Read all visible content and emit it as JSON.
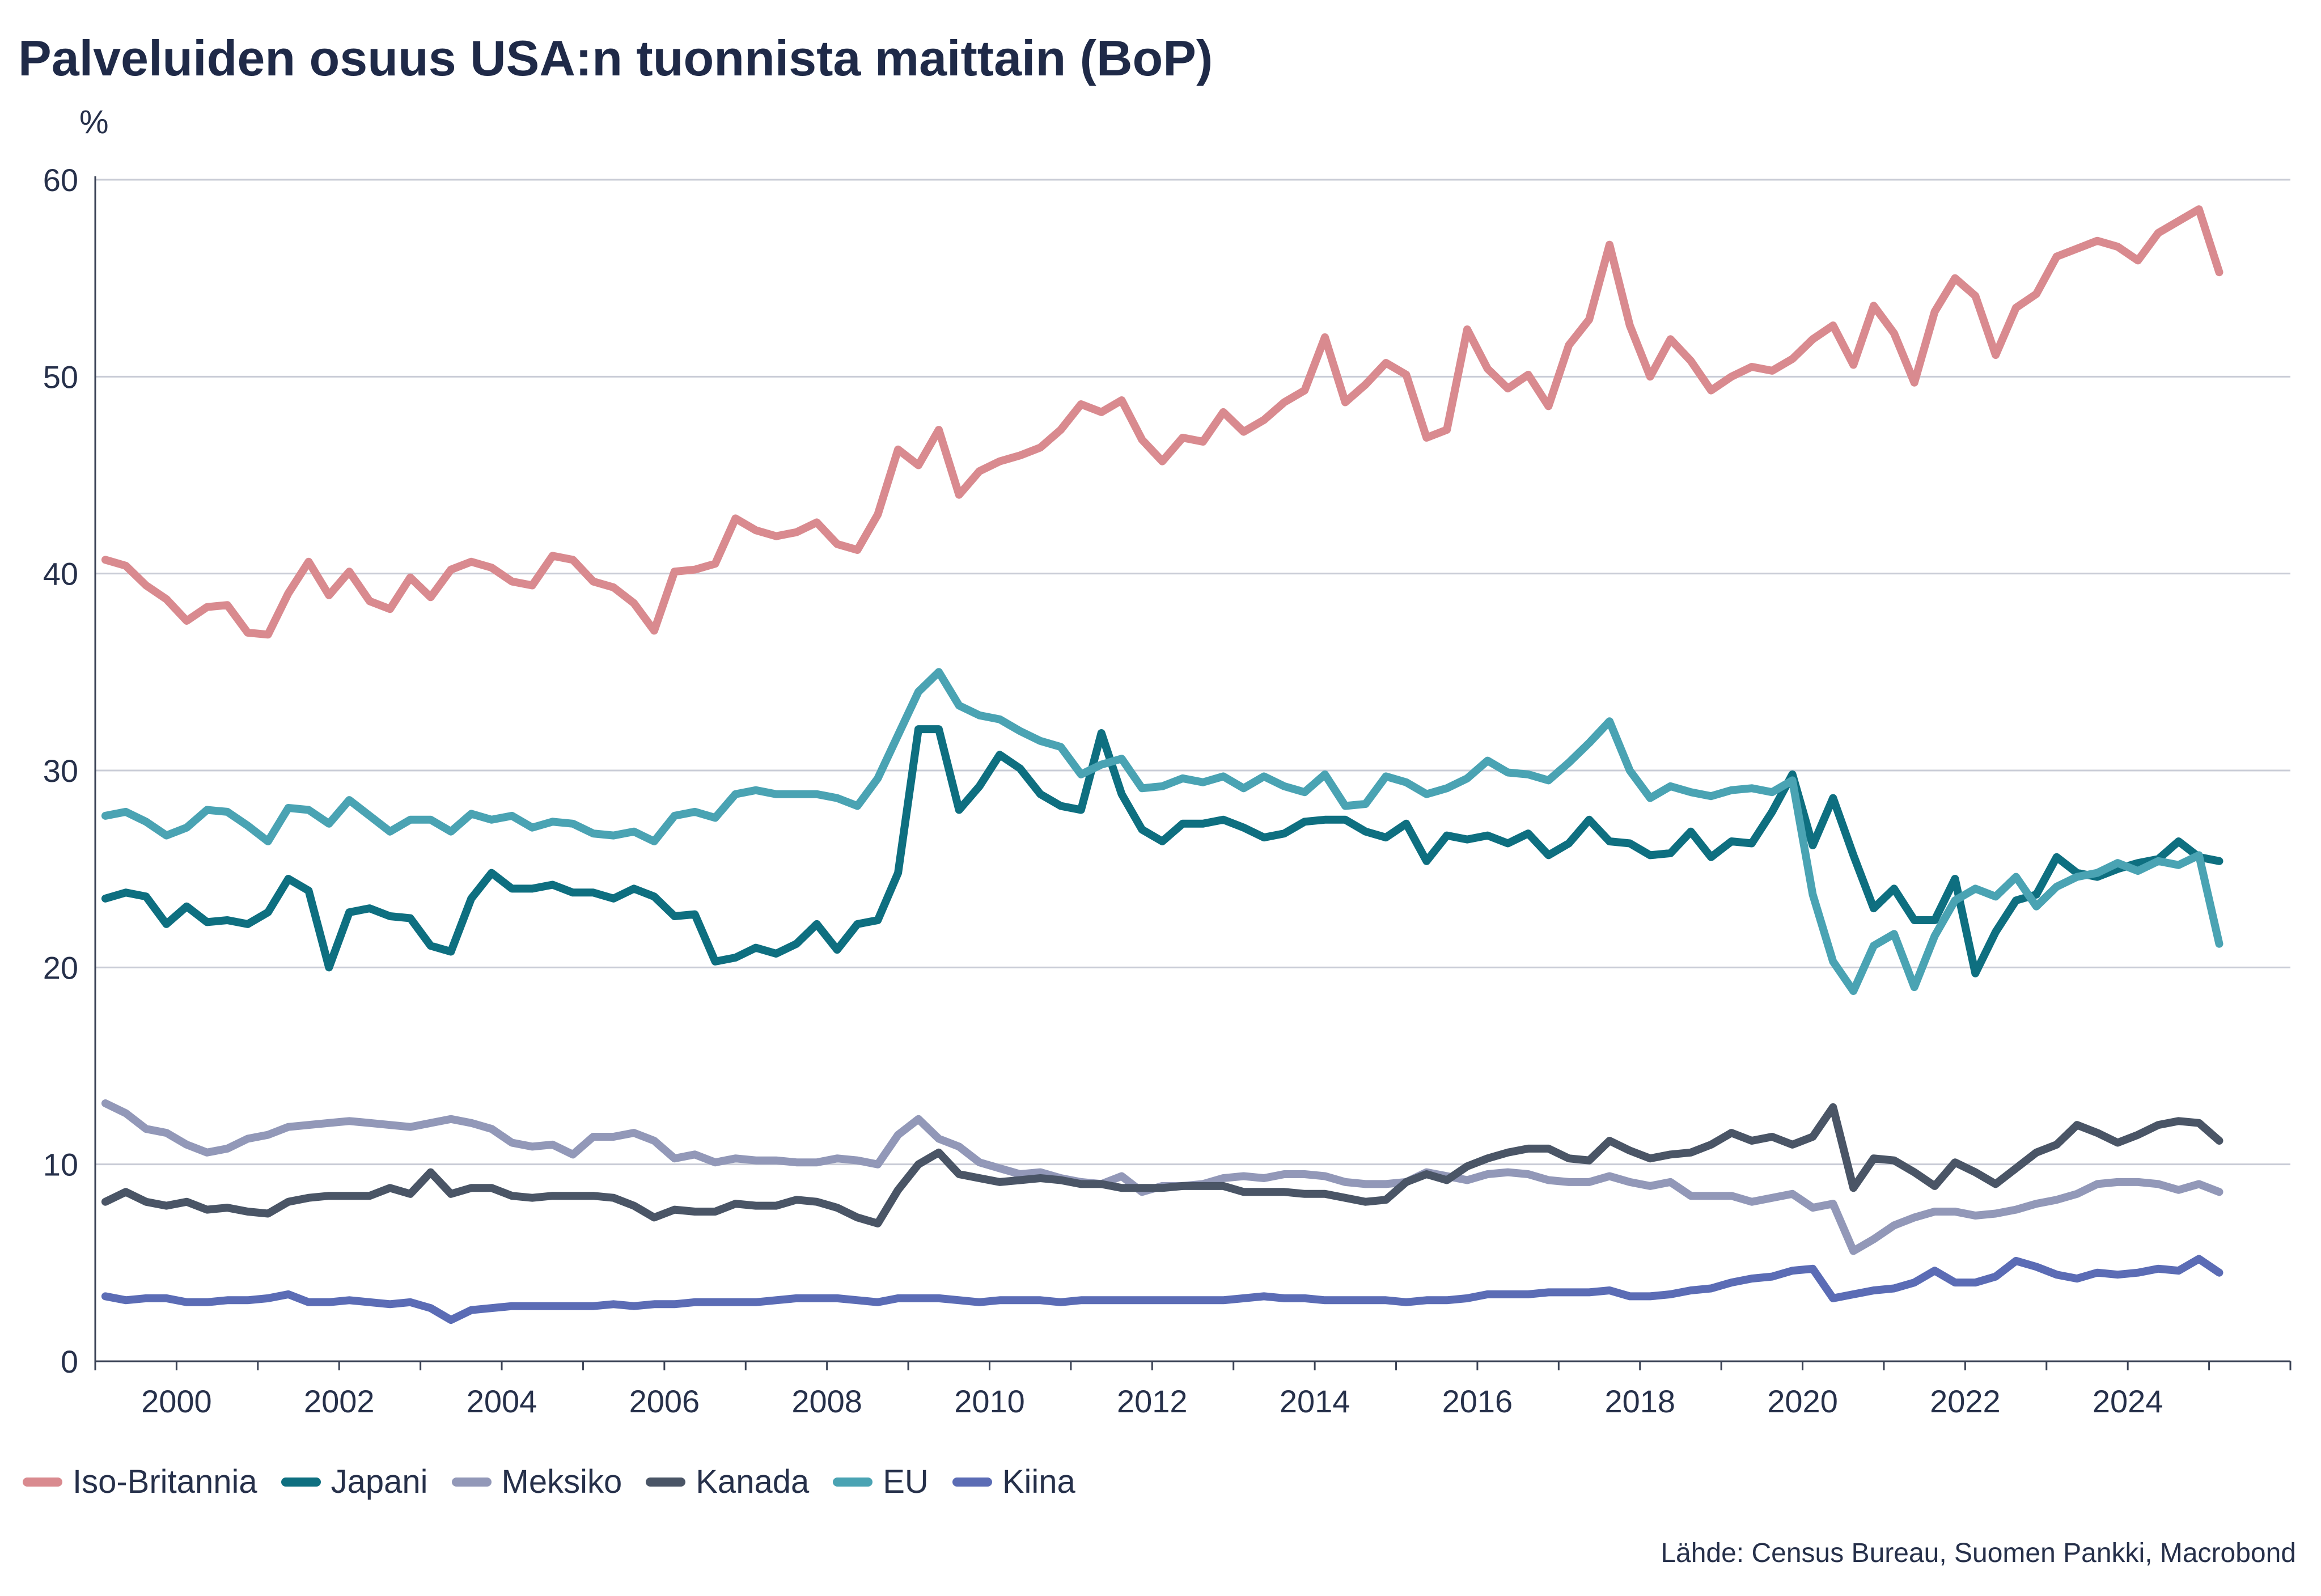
{
  "header": {
    "title": "Palveluiden osuus USA:n tuonnista maittain (BoP)",
    "unit": "%"
  },
  "source": "Lähde: Census Bureau, Suomen Pankki, Macrobond",
  "chart_data": {
    "type": "line",
    "title": "Palveluiden osuus USA:n tuonnista maittain (BoP)",
    "xlabel": "",
    "ylabel": "%",
    "xlim": [
      1999.0,
      2026.0
    ],
    "ylim": [
      0,
      60
    ],
    "y_ticks": [
      0,
      10,
      20,
      30,
      40,
      50,
      60
    ],
    "x_ticks": [
      2000,
      2002,
      2004,
      2006,
      2008,
      2010,
      2012,
      2014,
      2016,
      2018,
      2020,
      2022,
      2024
    ],
    "x_tick_labels": [
      "2000",
      "2002",
      "2004",
      "2006",
      "2008",
      "2010",
      "2012",
      "2014",
      "2016",
      "2018",
      "2020",
      "2022",
      "2024"
    ],
    "grid": "horizontal",
    "legend_position": "bottom-left",
    "x_start": 1999.125,
    "x_step": 0.25,
    "series": [
      {
        "name": "Iso-Britannia",
        "color": "#d98a8f",
        "values": [
          40.7,
          40.4,
          39.4,
          38.7,
          37.6,
          38.3,
          38.4,
          37.0,
          36.9,
          39.0,
          40.6,
          38.9,
          40.1,
          38.6,
          38.2,
          39.8,
          38.8,
          40.2,
          40.6,
          40.3,
          39.6,
          39.4,
          40.9,
          40.7,
          39.6,
          39.3,
          38.5,
          37.1,
          40.1,
          40.2,
          40.5,
          42.8,
          42.2,
          41.9,
          42.1,
          42.6,
          41.5,
          41.2,
          43.0,
          46.3,
          45.5,
          47.3,
          44.0,
          45.2,
          45.7,
          46.0,
          46.4,
          47.3,
          48.6,
          48.2,
          48.8,
          46.8,
          45.7,
          46.9,
          46.7,
          48.2,
          47.2,
          47.8,
          48.7,
          49.3,
          52.0,
          48.7,
          49.6,
          50.7,
          50.1,
          46.9,
          47.3,
          52.4,
          50.4,
          49.4,
          50.1,
          48.5,
          51.6,
          52.9,
          56.7,
          52.6,
          50.0,
          51.9,
          50.8,
          49.3,
          50.0,
          50.5,
          50.3,
          50.9,
          51.9,
          52.6,
          50.6,
          53.6,
          52.2,
          49.7,
          53.3,
          55.0,
          54.1,
          51.1,
          53.5,
          54.2,
          56.1,
          56.5,
          56.9,
          56.6,
          55.9,
          57.3,
          57.9,
          58.5,
          55.3
        ]
      },
      {
        "name": "Japani",
        "color": "#0e6f80",
        "values": [
          23.5,
          23.8,
          23.6,
          22.2,
          23.1,
          22.3,
          22.4,
          22.2,
          22.8,
          24.5,
          23.9,
          20.0,
          22.8,
          23.0,
          22.6,
          22.5,
          21.1,
          20.8,
          23.5,
          24.8,
          24.0,
          24.0,
          24.2,
          23.8,
          23.8,
          23.5,
          24.0,
          23.6,
          22.6,
          22.7,
          20.3,
          20.5,
          21.0,
          20.7,
          21.2,
          22.2,
          20.9,
          22.2,
          22.4,
          24.8,
          32.1,
          32.1,
          28.0,
          29.2,
          30.8,
          30.1,
          28.8,
          28.2,
          28.0,
          31.9,
          28.8,
          27.0,
          26.4,
          27.3,
          27.3,
          27.5,
          27.1,
          26.6,
          26.8,
          27.4,
          27.5,
          27.5,
          26.9,
          26.6,
          27.3,
          25.4,
          26.7,
          26.5,
          26.7,
          26.3,
          26.8,
          25.7,
          26.3,
          27.5,
          26.4,
          26.3,
          25.7,
          25.8,
          26.9,
          25.6,
          26.4,
          26.3,
          27.9,
          29.8,
          26.2,
          28.6,
          25.7,
          23.0,
          24.0,
          22.4,
          22.4,
          24.5,
          19.7,
          21.8,
          23.4,
          23.7,
          25.6,
          24.8,
          24.6,
          25.0,
          25.3,
          25.5,
          26.4,
          25.6,
          25.4
        ]
      },
      {
        "name": "Meksiko",
        "color": "#9298b8",
        "values": [
          13.1,
          12.6,
          11.8,
          11.6,
          11.0,
          10.6,
          10.8,
          11.3,
          11.5,
          11.9,
          12.0,
          12.1,
          12.2,
          12.1,
          12.0,
          11.9,
          12.1,
          12.3,
          12.1,
          11.8,
          11.1,
          10.9,
          11.0,
          10.5,
          11.4,
          11.4,
          11.6,
          11.2,
          10.3,
          10.5,
          10.1,
          10.3,
          10.2,
          10.2,
          10.1,
          10.1,
          10.3,
          10.2,
          10.0,
          11.5,
          12.3,
          11.3,
          10.9,
          10.1,
          9.8,
          9.5,
          9.6,
          9.3,
          9.1,
          9.0,
          9.4,
          8.6,
          8.9,
          8.9,
          9.0,
          9.3,
          9.4,
          9.3,
          9.5,
          9.5,
          9.4,
          9.1,
          9.0,
          9.0,
          9.1,
          9.6,
          9.4,
          9.2,
          9.5,
          9.6,
          9.5,
          9.2,
          9.1,
          9.1,
          9.4,
          9.1,
          8.9,
          9.1,
          8.4,
          8.4,
          8.4,
          8.1,
          8.3,
          8.5,
          7.8,
          8.0,
          5.6,
          6.2,
          6.9,
          7.3,
          7.6,
          7.6,
          7.4,
          7.5,
          7.7,
          8.0,
          8.2,
          8.5,
          9.0,
          9.1,
          9.1,
          9.0,
          8.7,
          9.0,
          8.6
        ]
      },
      {
        "name": "Kanada",
        "color": "#4a5566",
        "values": [
          8.1,
          8.6,
          8.1,
          7.9,
          8.1,
          7.7,
          7.8,
          7.6,
          7.5,
          8.1,
          8.3,
          8.4,
          8.4,
          8.4,
          8.8,
          8.5,
          9.6,
          8.5,
          8.8,
          8.8,
          8.4,
          8.3,
          8.4,
          8.4,
          8.4,
          8.3,
          7.9,
          7.3,
          7.7,
          7.6,
          7.6,
          8.0,
          7.9,
          7.9,
          8.2,
          8.1,
          7.8,
          7.3,
          7.0,
          8.7,
          10.0,
          10.6,
          9.5,
          9.3,
          9.1,
          9.2,
          9.3,
          9.2,
          9.0,
          9.0,
          8.8,
          8.8,
          8.8,
          8.9,
          8.9,
          8.9,
          8.6,
          8.6,
          8.6,
          8.5,
          8.5,
          8.3,
          8.1,
          8.2,
          9.1,
          9.5,
          9.2,
          9.9,
          10.3,
          10.6,
          10.8,
          10.8,
          10.3,
          10.2,
          11.2,
          10.7,
          10.3,
          10.5,
          10.6,
          11.0,
          11.6,
          11.2,
          11.4,
          11.0,
          11.4,
          12.9,
          8.8,
          10.3,
          10.2,
          9.6,
          8.9,
          10.1,
          9.6,
          9.0,
          9.8,
          10.6,
          11.0,
          12.0,
          11.6,
          11.1,
          11.5,
          12.0,
          12.2,
          12.1,
          11.2
        ]
      },
      {
        "name": "EU",
        "color": "#4aa3b3",
        "values": [
          27.7,
          27.9,
          27.4,
          26.7,
          27.1,
          28.0,
          27.9,
          27.2,
          26.4,
          28.1,
          28.0,
          27.3,
          28.5,
          27.7,
          26.9,
          27.5,
          27.5,
          26.9,
          27.8,
          27.5,
          27.7,
          27.1,
          27.4,
          27.3,
          26.8,
          26.7,
          26.9,
          26.4,
          27.7,
          27.9,
          27.6,
          28.8,
          29.0,
          28.8,
          28.8,
          28.8,
          28.6,
          28.2,
          29.6,
          31.8,
          34.0,
          35.0,
          33.3,
          32.8,
          32.6,
          32.0,
          31.5,
          31.2,
          29.8,
          30.3,
          30.6,
          29.1,
          29.2,
          29.6,
          29.4,
          29.7,
          29.1,
          29.7,
          29.2,
          28.9,
          29.8,
          28.2,
          28.3,
          29.7,
          29.4,
          28.8,
          29.1,
          29.6,
          30.5,
          29.9,
          29.8,
          29.5,
          30.4,
          31.4,
          32.5,
          30.0,
          28.6,
          29.2,
          28.9,
          28.7,
          29.0,
          29.1,
          28.9,
          29.5,
          23.7,
          20.3,
          18.8,
          21.1,
          21.7,
          19.0,
          21.6,
          23.4,
          24.0,
          23.6,
          24.6,
          23.1,
          24.1,
          24.6,
          24.8,
          25.3,
          24.9,
          25.4,
          25.2,
          25.7,
          21.2
        ]
      },
      {
        "name": "Kiina",
        "color": "#5b6cb5",
        "values": [
          3.3,
          3.1,
          3.2,
          3.2,
          3.0,
          3.0,
          3.1,
          3.1,
          3.2,
          3.4,
          3.0,
          3.0,
          3.1,
          3.0,
          2.9,
          3.0,
          2.7,
          2.1,
          2.6,
          2.7,
          2.8,
          2.8,
          2.8,
          2.8,
          2.8,
          2.9,
          2.8,
          2.9,
          2.9,
          3.0,
          3.0,
          3.0,
          3.0,
          3.1,
          3.2,
          3.2,
          3.2,
          3.1,
          3.0,
          3.2,
          3.2,
          3.2,
          3.1,
          3.0,
          3.1,
          3.1,
          3.1,
          3.0,
          3.1,
          3.1,
          3.1,
          3.1,
          3.1,
          3.1,
          3.1,
          3.1,
          3.2,
          3.3,
          3.2,
          3.2,
          3.1,
          3.1,
          3.1,
          3.1,
          3.0,
          3.1,
          3.1,
          3.2,
          3.4,
          3.4,
          3.4,
          3.5,
          3.5,
          3.5,
          3.6,
          3.3,
          3.3,
          3.4,
          3.6,
          3.7,
          4.0,
          4.2,
          4.3,
          4.6,
          4.7,
          3.2,
          3.4,
          3.6,
          3.7,
          4.0,
          4.6,
          4.0,
          4.0,
          4.3,
          5.1,
          4.8,
          4.4,
          4.2,
          4.5,
          4.4,
          4.5,
          4.7,
          4.6,
          5.2,
          4.5
        ]
      }
    ]
  }
}
